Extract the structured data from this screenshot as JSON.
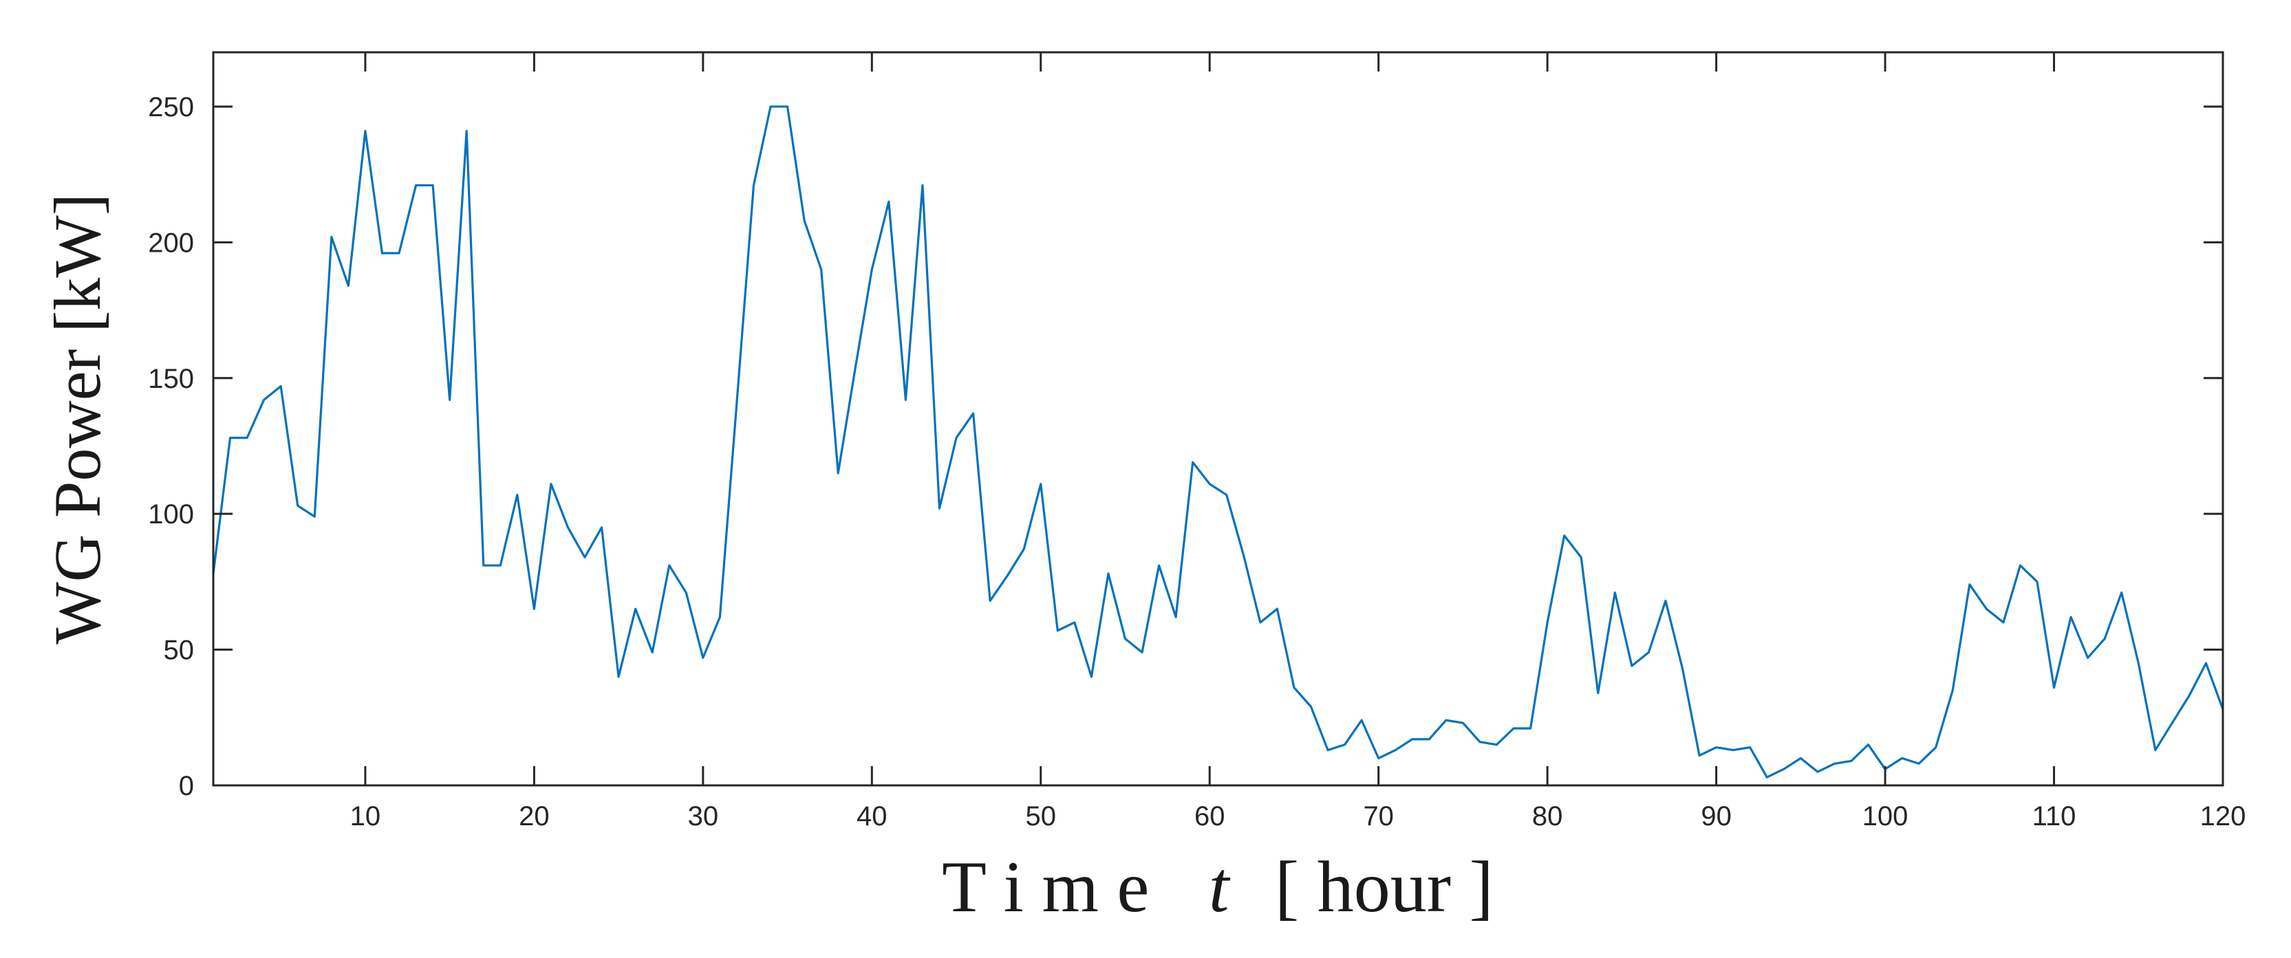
{
  "chart_data": {
    "type": "line",
    "xlabel": "T i m e   t  [ hour ]",
    "xlabel_parts": {
      "pre": "T i m e",
      "var": "t",
      "post": "[ hour ]"
    },
    "ylabel": "WG Power [kW]",
    "xlim": [
      1,
      120
    ],
    "ylim": [
      0,
      270
    ],
    "xticks": [
      10,
      20,
      30,
      40,
      50,
      60,
      70,
      80,
      90,
      100,
      110,
      120
    ],
    "yticks": [
      0,
      50,
      100,
      150,
      200,
      250
    ],
    "grid": false,
    "line_color": "#0072BD",
    "series": [
      {
        "x": [
          1,
          2,
          3,
          4,
          5,
          6,
          7,
          8,
          9,
          10,
          11,
          12,
          13,
          14,
          15,
          16,
          17,
          18,
          19,
          20,
          21,
          22,
          23,
          24,
          25,
          26,
          27,
          28,
          29,
          30,
          31,
          32,
          33,
          34,
          35,
          36,
          37,
          38,
          39,
          40,
          41,
          42,
          43,
          44,
          45,
          46,
          47,
          48,
          49,
          50,
          51,
          52,
          53,
          54,
          55,
          56,
          57,
          58,
          59,
          60,
          61,
          62,
          63,
          64,
          65,
          66,
          67,
          68,
          69,
          70,
          71,
          72,
          73,
          74,
          75,
          76,
          77,
          78,
          79,
          80,
          81,
          82,
          83,
          84,
          85,
          86,
          87,
          88,
          89,
          90,
          91,
          92,
          93,
          94,
          95,
          96,
          97,
          98,
          99,
          100,
          101,
          102,
          103,
          104,
          105,
          106,
          107,
          108,
          109,
          110,
          111,
          112,
          113,
          114,
          115,
          116,
          117,
          118,
          119,
          120
        ],
        "values": [
          78,
          128,
          128,
          142,
          147,
          103,
          99,
          202,
          184,
          241,
          196,
          196,
          221,
          221,
          142,
          241,
          81,
          81,
          107,
          65,
          111,
          95,
          84,
          95,
          40,
          65,
          49,
          81,
          71,
          47,
          62,
          141,
          221,
          250,
          250,
          208,
          190,
          115,
          153,
          190,
          215,
          142,
          221,
          102,
          128,
          137,
          68,
          77,
          87,
          111,
          57,
          60,
          40,
          78,
          54,
          49,
          81,
          62,
          119,
          111,
          107,
          85,
          60,
          65,
          36,
          29,
          13,
          15,
          24,
          10,
          13,
          17,
          17,
          24,
          23,
          16,
          15,
          21,
          21,
          60,
          92,
          84,
          34,
          71,
          44,
          49,
          68,
          43,
          11,
          14,
          13,
          14,
          3,
          6,
          10,
          5,
          8,
          9,
          15,
          6,
          10,
          8,
          14,
          35,
          74,
          65,
          60,
          81,
          75,
          36,
          62,
          47,
          54,
          71,
          45,
          13,
          23,
          33,
          45,
          28
        ]
      }
    ]
  }
}
